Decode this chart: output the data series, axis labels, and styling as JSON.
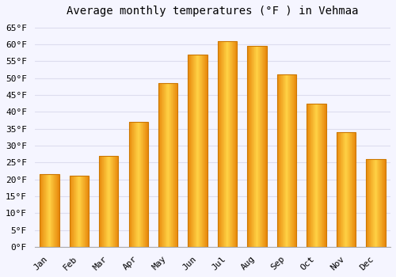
{
  "title": "Average monthly temperatures (°F ) in Vehmaa",
  "months": [
    "Jan",
    "Feb",
    "Mar",
    "Apr",
    "May",
    "Jun",
    "Jul",
    "Aug",
    "Sep",
    "Oct",
    "Nov",
    "Dec"
  ],
  "values": [
    21.5,
    21.0,
    27.0,
    37.0,
    48.5,
    57.0,
    61.0,
    59.5,
    51.0,
    42.5,
    34.0,
    26.0
  ],
  "bar_color_center": "#FFCC44",
  "bar_color_edge": "#E8890C",
  "bar_border_color": "#CC7700",
  "background_color": "#F5F5FF",
  "grid_color": "#DDDDEE",
  "ylim": [
    0,
    67
  ],
  "yticks": [
    0,
    5,
    10,
    15,
    20,
    25,
    30,
    35,
    40,
    45,
    50,
    55,
    60,
    65
  ],
  "title_fontsize": 10,
  "tick_fontsize": 8,
  "font_family": "monospace",
  "bar_width": 0.65
}
